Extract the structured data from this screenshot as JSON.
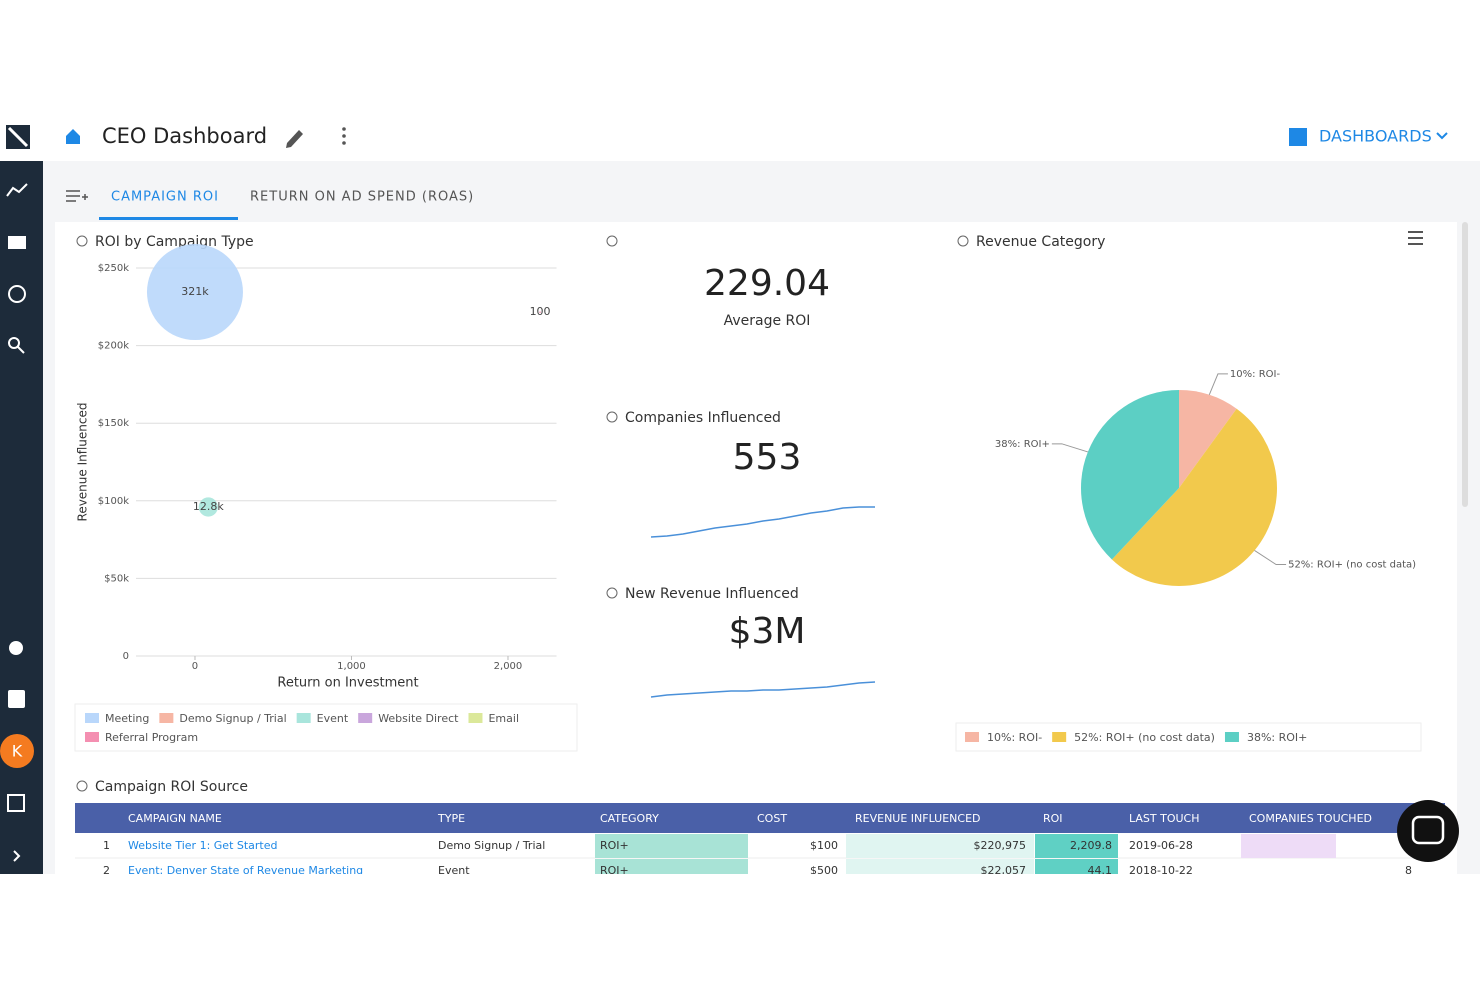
{
  "header": {
    "title": "CEO Dashboard",
    "dashboards": "DASHBOARDS"
  },
  "tabs": [
    "CAMPAIGN ROI",
    "RETURN ON AD SPEND (ROAS)"
  ],
  "sidebar": {
    "avatar": "K"
  },
  "chart_data": [
    {
      "type": "bubble",
      "title": "ROI by Campaign Type",
      "x_label": "Return on Investment",
      "y_label": "Revenue Influenced",
      "xlim": [
        -350,
        2310
      ],
      "xticks": [
        0,
        {
          "value": 1000,
          "label": "1,000"
        },
        {
          "value": 2000,
          "label": "2,000"
        }
      ],
      "ylim": [
        0,
        250000
      ],
      "yticks": [
        0,
        {
          "value": 50000,
          "label": "$50k"
        },
        {
          "value": 100000,
          "label": "$100k"
        },
        {
          "value": 150000,
          "label": "$150k"
        },
        {
          "value": 200000,
          "label": "$200k"
        },
        {
          "value": 250000,
          "label": "$250k"
        }
      ],
      "grid": true,
      "series": [
        {
          "name": "Meeting",
          "color": "#b9d7fb",
          "x": [
            0
          ],
          "values": [
            234500
          ],
          "sizes": [
            321000
          ],
          "size_labels": [
            "321k"
          ]
        },
        {
          "name": "Demo Signup / Trial",
          "color": "#f6b6a4",
          "x": [],
          "values": [],
          "sizes": [],
          "size_labels": []
        },
        {
          "name": "Event",
          "color": "#a9e5dc",
          "x": [
            85
          ],
          "values": [
            96000
          ],
          "sizes": [
            12800
          ],
          "size_labels": [
            "12.8k"
          ]
        },
        {
          "name": "Website Direct",
          "color": "#c9a6dc",
          "x": [],
          "values": [],
          "sizes": [],
          "size_labels": []
        },
        {
          "name": "Email",
          "color": "#dbe89a",
          "x": [],
          "values": [],
          "sizes": [],
          "size_labels": []
        },
        {
          "name": "Referral Program",
          "color": "#f48fb1",
          "x": [
            2205
          ],
          "values": [
            221500
          ],
          "sizes": [
            100
          ],
          "size_labels": [
            "100"
          ]
        }
      ]
    },
    {
      "type": "pie",
      "title": "Revenue Category",
      "categories": [
        "10%: ROI-",
        "52%: ROI+ (no cost data)",
        "38%: ROI+"
      ],
      "values": [
        10,
        52,
        38
      ],
      "colors": [
        "#f6b6a4",
        "#f2c94c",
        "#5ccfc4"
      ]
    }
  ],
  "kpis": [
    {
      "value": "229.04",
      "label": "Average ROI"
    },
    {
      "title": "Companies Influenced",
      "value": "553",
      "trend": [
        0,
        1,
        3,
        6,
        9,
        11,
        13,
        16,
        18,
        21,
        24,
        26,
        29,
        30,
        30
      ]
    },
    {
      "title": "New Revenue Influenced",
      "value": "$3M",
      "trend": [
        0,
        2,
        3,
        4,
        5,
        6,
        6,
        7,
        7,
        8,
        9,
        10,
        12,
        14,
        15
      ]
    }
  ],
  "table": {
    "title": "Campaign ROI Source",
    "columns": [
      "CAMPAIGN NAME",
      "TYPE",
      "CATEGORY",
      "COST",
      "REVENUE INFLUENCED",
      "ROI",
      "LAST TOUCH",
      "COMPANIES TOUCHED"
    ],
    "rows": [
      {
        "index": "1",
        "cells": [
          "Website Tier 1: Get Started",
          "Demo Signup / Trial",
          "ROI+",
          "$100",
          "$220,975",
          "2,209.8",
          "2019-06-28"
        ]
      },
      {
        "index": "2",
        "cells": [
          "Event: Denver State of Revenue Marketing",
          "Event",
          "ROI+",
          "$500",
          "$22,057",
          "44.1",
          "2018-10-22",
          "8"
        ]
      }
    ]
  }
}
